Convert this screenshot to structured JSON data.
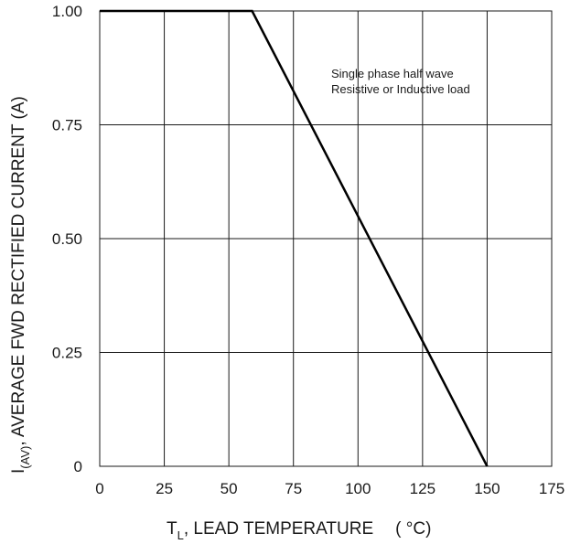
{
  "chart_data": {
    "type": "line",
    "title": "",
    "xlabel": {
      "main": "T",
      "sub": "L",
      "rest": ", LEAD TEMPERATURE",
      "unit": "( °C)"
    },
    "ylabel": {
      "main": "I",
      "sub": "(AV)",
      "rest": ", AVERAGE FWD RECTIFIED CURRENT (A)"
    },
    "xlim": [
      0,
      175
    ],
    "ylim": [
      0,
      1.0
    ],
    "xticks": [
      0,
      25,
      50,
      75,
      100,
      125,
      150,
      175
    ],
    "xtick_labels": [
      "0",
      "25",
      "50",
      "75",
      "100",
      "125",
      "150",
      "175"
    ],
    "yticks": [
      0,
      0.25,
      0.5,
      0.75,
      1.0
    ],
    "ytick_labels": [
      "0",
      "0.25",
      "0.50",
      "0.75",
      "1.00"
    ],
    "grid": true,
    "series": [
      {
        "x": [
          0,
          59,
          150
        ],
        "y": [
          1.0,
          1.0,
          0
        ],
        "color": "#000000"
      }
    ],
    "annotations": [
      "Single phase half wave",
      "Resistive or Inductive load"
    ]
  }
}
